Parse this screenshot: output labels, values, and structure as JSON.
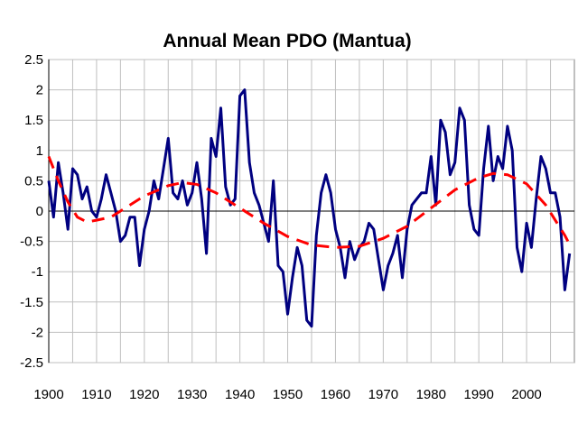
{
  "chart_data": {
    "type": "line",
    "title": "Annual Mean PDO (Mantua)",
    "xlabel": "",
    "ylabel": "",
    "xlim": [
      1900,
      2010
    ],
    "ylim": [
      -2.5,
      2.5
    ],
    "grid": true,
    "legend": "none",
    "x_ticks": [
      "1900",
      "1910",
      "1920",
      "1930",
      "1940",
      "1950",
      "1960",
      "1970",
      "1980",
      "1990",
      "2000"
    ],
    "y_ticks": [
      "2.5",
      "2",
      "1.5",
      "1",
      "0.5",
      "0",
      "-0.5",
      "-1",
      "-1.5",
      "-2",
      "-2.5"
    ],
    "series": [
      {
        "color": "#000080",
        "style": "solid",
        "x": [
          1900,
          1901,
          1902,
          1903,
          1904,
          1905,
          1906,
          1907,
          1908,
          1909,
          1910,
          1911,
          1912,
          1913,
          1914,
          1915,
          1916,
          1917,
          1918,
          1919,
          1920,
          1921,
          1922,
          1923,
          1924,
          1925,
          1926,
          1927,
          1928,
          1929,
          1930,
          1931,
          1932,
          1933,
          1934,
          1935,
          1936,
          1937,
          1938,
          1939,
          1940,
          1941,
          1942,
          1943,
          1944,
          1945,
          1946,
          1947,
          1948,
          1949,
          1950,
          1951,
          1952,
          1953,
          1954,
          1955,
          1956,
          1957,
          1958,
          1959,
          1960,
          1961,
          1962,
          1963,
          1964,
          1965,
          1966,
          1967,
          1968,
          1969,
          1970,
          1971,
          1972,
          1973,
          1974,
          1975,
          1976,
          1977,
          1978,
          1979,
          1980,
          1981,
          1982,
          1983,
          1984,
          1985,
          1986,
          1987,
          1988,
          1989,
          1990,
          1991,
          1992,
          1993,
          1994,
          1995,
          1996,
          1997,
          1998,
          1999,
          2000,
          2001,
          2002,
          2003,
          2004,
          2005,
          2006,
          2007,
          2008,
          2009
        ],
        "values": [
          0.5,
          -0.1,
          0.8,
          0.3,
          -0.3,
          0.7,
          0.6,
          0.2,
          0.4,
          0.0,
          -0.1,
          0.2,
          0.6,
          0.3,
          0.0,
          -0.5,
          -0.4,
          -0.1,
          -0.1,
          -0.9,
          -0.3,
          0.0,
          0.5,
          0.2,
          0.7,
          1.2,
          0.3,
          0.2,
          0.5,
          0.1,
          0.3,
          0.8,
          0.2,
          -0.7,
          1.2,
          0.9,
          1.7,
          0.4,
          0.1,
          0.2,
          1.9,
          2.0,
          0.8,
          0.3,
          0.1,
          -0.2,
          -0.5,
          0.5,
          -0.9,
          -1.0,
          -1.7,
          -1.1,
          -0.6,
          -0.9,
          -1.8,
          -1.9,
          -0.4,
          0.3,
          0.6,
          0.3,
          -0.3,
          -0.6,
          -1.1,
          -0.5,
          -0.8,
          -0.6,
          -0.5,
          -0.2,
          -0.3,
          -0.8,
          -1.3,
          -0.9,
          -0.7,
          -0.4,
          -1.1,
          -0.3,
          0.1,
          0.2,
          0.3,
          0.3,
          0.9,
          0.1,
          1.5,
          1.3,
          0.6,
          0.8,
          1.7,
          1.5,
          0.1,
          -0.3,
          -0.4,
          0.7,
          1.4,
          0.5,
          0.9,
          0.7,
          1.4,
          1.0,
          -0.6,
          -1.0,
          -0.2,
          -0.6,
          0.2,
          0.9,
          0.7,
          0.3,
          0.3,
          -0.1,
          -1.3,
          -0.7
        ]
      },
      {
        "color": "#ff0000",
        "style": "dashed",
        "x": [
          1900,
          1902,
          1904,
          1906,
          1908,
          1910,
          1913,
          1916,
          1920,
          1925,
          1928,
          1931,
          1935,
          1940,
          1945,
          1950,
          1955,
          1960,
          1965,
          1970,
          1975,
          1980,
          1985,
          1990,
          1993,
          1996,
          2000,
          2004,
          2008,
          2009
        ],
        "values": [
          0.9,
          0.5,
          0.15,
          -0.1,
          -0.18,
          -0.15,
          -0.1,
          0.05,
          0.25,
          0.42,
          0.47,
          0.44,
          0.3,
          0.05,
          -0.2,
          -0.42,
          -0.56,
          -0.6,
          -0.58,
          -0.45,
          -0.25,
          0.05,
          0.35,
          0.55,
          0.62,
          0.6,
          0.45,
          0.1,
          -0.4,
          -0.55
        ]
      }
    ]
  }
}
